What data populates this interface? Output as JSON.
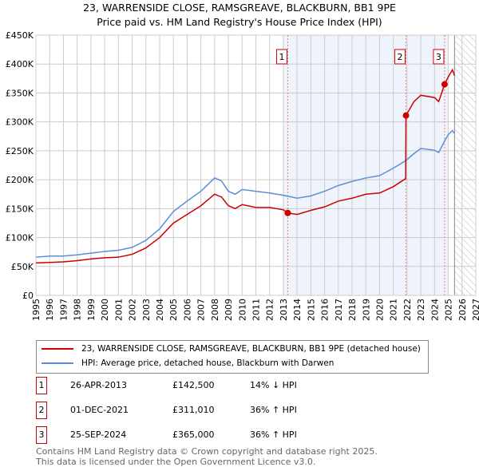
{
  "header": {
    "title": "23, WARRENSIDE CLOSE, RAMSGREAVE, BLACKBURN, BB1 9PE",
    "subtitle": "Price paid vs. HM Land Registry's House Price Index (HPI)"
  },
  "chart_data": {
    "type": "line",
    "title": "23, WARRENSIDE CLOSE, RAMSGREAVE, BLACKBURN, BB1 9PE",
    "subtitle": "Price paid vs. HM Land Registry's House Price Index (HPI)",
    "xlim": [
      1995,
      2027
    ],
    "ylim": [
      0,
      450000
    ],
    "x_ticks": [
      "1995",
      "1996",
      "1997",
      "1998",
      "1999",
      "2000",
      "2001",
      "2002",
      "2003",
      "2004",
      "2005",
      "2006",
      "2007",
      "2008",
      "2009",
      "2010",
      "2011",
      "2012",
      "2013",
      "2014",
      "2015",
      "2016",
      "2017",
      "2018",
      "2019",
      "2020",
      "2021",
      "2022",
      "2023",
      "2024",
      "2025",
      "2026",
      "2027"
    ],
    "y_ticks": [
      {
        "v": 0,
        "l": "£0"
      },
      {
        "v": 50000,
        "l": "£50K"
      },
      {
        "v": 100000,
        "l": "£100K"
      },
      {
        "v": 150000,
        "l": "£150K"
      },
      {
        "v": 200000,
        "l": "£200K"
      },
      {
        "v": 250000,
        "l": "£250K"
      },
      {
        "v": 300000,
        "l": "£300K"
      },
      {
        "v": 350000,
        "l": "£350K"
      },
      {
        "v": 400000,
        "l": "£400K"
      },
      {
        "v": 450000,
        "l": "£450K"
      }
    ],
    "grid": true,
    "shaded_range": [
      2013.0,
      2025.0
    ],
    "forecast_hatch_from": 2025.45,
    "series": [
      {
        "name": "23, WARRENSIDE CLOSE, RAMSGREAVE, BLACKBURN, BB1 9PE (detached house)",
        "color": "#cc0000",
        "x": [
          1995,
          1996,
          1997,
          1998,
          1999,
          2000,
          2001,
          2002,
          2003,
          2004,
          2005,
          2006,
          2007,
          2008,
          2008.5,
          2009,
          2009.5,
          2010,
          2011,
          2012,
          2013,
          2013.32,
          2014,
          2015,
          2016,
          2017,
          2018,
          2019,
          2020,
          2021,
          2021.9,
          2021.92,
          2022.5,
          2023,
          2024,
          2024.3,
          2024.73,
          2025,
          2025.3,
          2025.45
        ],
        "values": [
          56000,
          57000,
          58000,
          60000,
          63000,
          65000,
          66000,
          71000,
          82000,
          100000,
          125000,
          140000,
          155000,
          175000,
          170000,
          155000,
          150000,
          157000,
          152000,
          152000,
          148000,
          142500,
          140000,
          147000,
          153000,
          163000,
          168000,
          175000,
          177000,
          188000,
          202000,
          311010,
          335000,
          346000,
          342000,
          335000,
          365000,
          378000,
          390000,
          380000
        ]
      },
      {
        "name": "HPI: Average price, detached house, Blackburn with Darwen",
        "color": "#5b8fd4",
        "x": [
          1995,
          1996,
          1997,
          1998,
          1999,
          2000,
          2001,
          2002,
          2003,
          2004,
          2005,
          2006,
          2007,
          2008,
          2008.5,
          2009,
          2009.5,
          2010,
          2011,
          2012,
          2013,
          2014,
          2015,
          2016,
          2017,
          2018,
          2019,
          2020,
          2021,
          2021.9,
          2022.5,
          2023,
          2024,
          2024.3,
          2024.75,
          2025,
          2025.3,
          2025.45
        ],
        "values": [
          66000,
          68000,
          68000,
          70000,
          73000,
          76000,
          78000,
          83000,
          95000,
          115000,
          145000,
          163000,
          180000,
          203000,
          198000,
          180000,
          175000,
          183000,
          180000,
          177000,
          173000,
          168000,
          172000,
          180000,
          190000,
          197000,
          203000,
          207000,
          220000,
          233000,
          245000,
          254000,
          251000,
          247000,
          268000,
          278000,
          285000,
          280000
        ]
      }
    ],
    "sales": [
      {
        "label": "1",
        "x": 2013.32,
        "value": 142500,
        "date": "26-APR-2013",
        "price": "£142,500",
        "hpi": "14% ↓ HPI"
      },
      {
        "label": "2",
        "x": 2021.92,
        "value": 311010,
        "date": "01-DEC-2021",
        "price": "£311,010",
        "hpi": "36% ↑ HPI"
      },
      {
        "label": "3",
        "x": 2024.73,
        "value": 365000,
        "date": "25-SEP-2024",
        "price": "£365,000",
        "hpi": "36% ↑ HPI"
      }
    ]
  },
  "legend": {
    "red": "23, WARRENSIDE CLOSE, RAMSGREAVE, BLACKBURN, BB1 9PE (detached house)",
    "blue": "HPI: Average price, detached house, Blackburn with Darwen"
  },
  "footer": {
    "line1": "Contains HM Land Registry data © Crown copyright and database right 2025.",
    "line2": "This data is licensed under the Open Government Licence v3.0."
  }
}
